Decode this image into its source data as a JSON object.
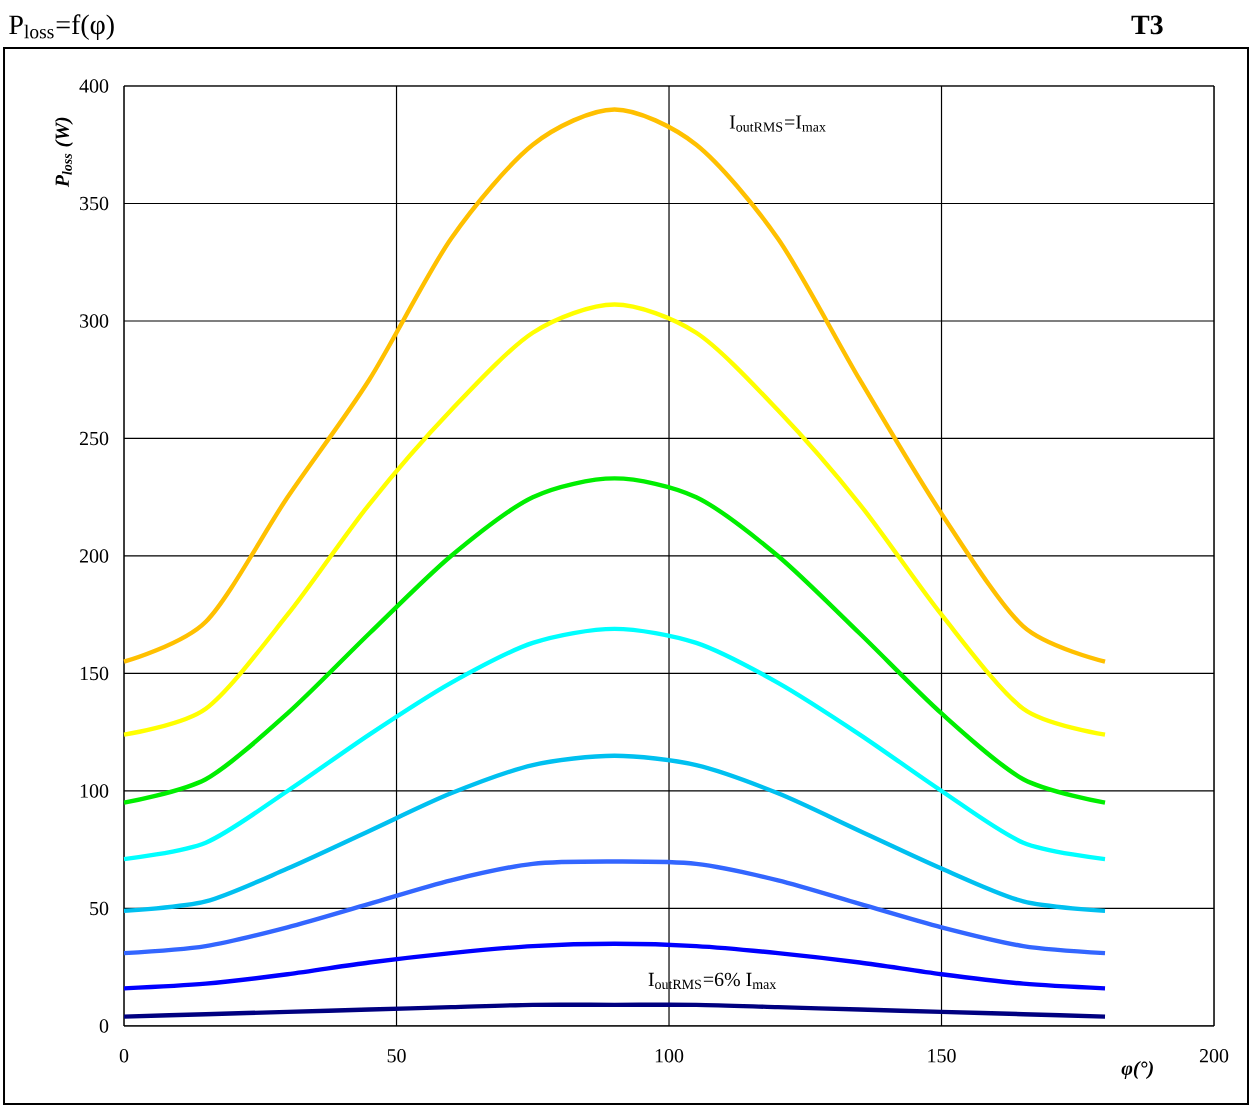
{
  "chart_data": {
    "type": "line",
    "title": "P$_{loss}$=f(φ)",
    "subtitle": "T3",
    "xlabel": "φ(°)",
    "ylabel": "P$_{loss}$ (W)",
    "x": [
      0,
      15,
      30,
      45,
      60,
      75,
      90,
      105,
      120,
      135,
      150,
      165,
      180
    ],
    "series": [
      {
        "color": "#ffc000",
        "values": [
          155,
          172,
          225,
          275,
          335,
          375,
          390,
          375,
          335,
          275,
          218,
          170,
          155
        ]
      },
      {
        "color": "#ffff00",
        "values": [
          124,
          135,
          175,
          222,
          262,
          295,
          307,
          295,
          262,
          222,
          175,
          135,
          124
        ]
      },
      {
        "color": "#00ee00",
        "values": [
          95,
          105,
          133,
          167,
          200,
          225,
          233,
          225,
          200,
          167,
          133,
          105,
          95
        ]
      },
      {
        "color": "#00ffff",
        "values": [
          71,
          78,
          100,
          124,
          146,
          163,
          169,
          163,
          146,
          124,
          100,
          78,
          71
        ]
      },
      {
        "color": "#00c0f0",
        "values": [
          49,
          53,
          67,
          83,
          99,
          111,
          115,
          111,
          99,
          83,
          67,
          53,
          49
        ]
      },
      {
        "color": "#3366ff",
        "values": [
          31,
          34,
          42,
          52,
          62,
          69,
          70,
          69,
          62,
          52,
          42,
          34,
          31
        ]
      },
      {
        "color": "#0000ff",
        "values": [
          16,
          18,
          22,
          27,
          31,
          34,
          35,
          34,
          31,
          27,
          22,
          18,
          16
        ]
      },
      {
        "color": "#000080",
        "values": [
          4,
          5,
          6,
          7,
          8,
          9,
          9,
          9,
          8,
          7,
          6,
          5,
          4
        ]
      }
    ],
    "annotations": [
      "I$_{outRMS}$=I$_{max}$",
      "I$_{outRMS}$=6% I$_{max}$"
    ],
    "xlim": [
      0,
      200
    ],
    "xticks": [
      0,
      50,
      100,
      150,
      200
    ],
    "ylim": [
      0,
      400
    ],
    "yticks": [
      0,
      50,
      100,
      150,
      200,
      250,
      300,
      350,
      400
    ],
    "grid": true,
    "marker": "none",
    "line_style": "solid"
  }
}
